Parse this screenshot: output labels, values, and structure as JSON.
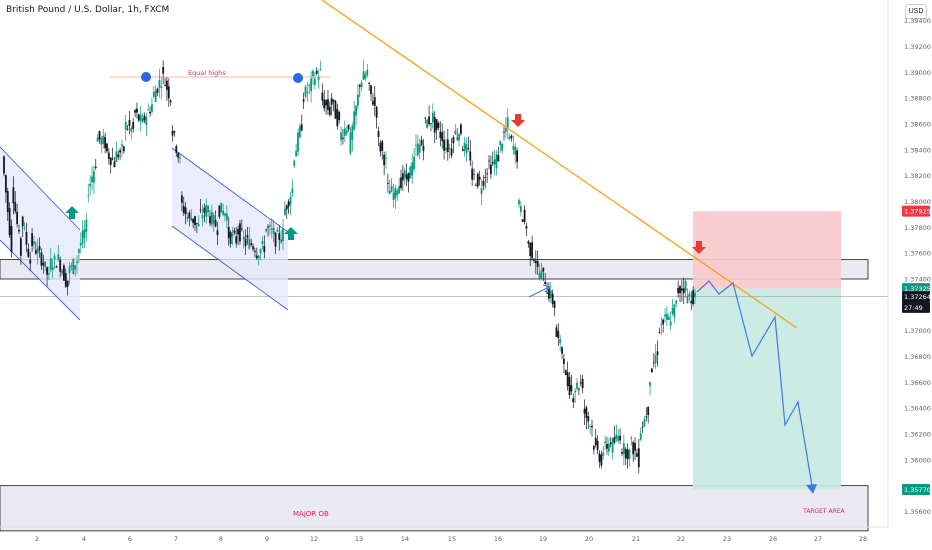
{
  "header": {
    "title": "British Pound / U.S. Dollar, 1h, FXCM",
    "currency": "USD"
  },
  "colors": {
    "up": "#089981",
    "down": "#131722",
    "trendline": "#f5a623",
    "zone_fill": "#e8e8ee",
    "channel": "#3b5bdb",
    "channel_fill": "#e3e9fb",
    "stop_fill": "#f8c9cc",
    "target_fill": "#c6e9e1",
    "arrow_red": "#e53935",
    "arrow_green": "#089981",
    "dot": "#2d66e6",
    "label_pink": "#e91e63",
    "path_blue": "#3d7be0"
  },
  "chart_data": {
    "type": "candlestick",
    "symbol": "British Pound / U.S. Dollar",
    "timeframe": "1h",
    "source": "FXCM",
    "price_ticks": [
      "1.39400",
      "1.39200",
      "1.39000",
      "1.38800",
      "1.38600",
      "1.38400",
      "1.38200",
      "1.38000",
      "1.37800",
      "1.37600",
      "1.37400",
      "1.37000",
      "1.36800",
      "1.36600",
      "1.36400",
      "1.36200",
      "1.36000",
      "1.35600"
    ],
    "date_ticks": [
      "2",
      "4",
      "6",
      "7",
      "8",
      "9",
      "12",
      "13",
      "14",
      "15",
      "16",
      "19",
      "20",
      "21",
      "22",
      "23",
      "26",
      "27",
      "28"
    ],
    "ylim": [
      1.355,
      1.395
    ],
    "price_labels": [
      {
        "value": "1.37925",
        "price": 1.37925,
        "color": "#f23645"
      },
      {
        "value": "1.37325",
        "price": 1.37325,
        "color": "#089981"
      },
      {
        "value": "1.37264",
        "price": 1.37264,
        "color": "#131722"
      },
      {
        "value": "27:49",
        "price": 1.3718,
        "color": "#131722"
      },
      {
        "value": "1.35770",
        "price": 1.3577,
        "color": "#089981"
      }
    ],
    "annotations": {
      "equal_highs": "Equal highs",
      "major_ob": "MAJOR OB",
      "target_area": "TARGET AREA"
    },
    "price_path": [
      [
        1.3835,
        1.3765
      ],
      [
        1.3815,
        1.376
      ],
      [
        1.379,
        1.3753
      ],
      [
        1.377,
        1.3758
      ],
      [
        1.376,
        1.374
      ],
      [
        1.3752,
        1.3755
      ],
      [
        1.3755,
        1.3735
      ],
      [
        1.3745,
        1.3755
      ],
      [
        1.376,
        1.378
      ],
      [
        1.3805,
        1.383
      ],
      [
        1.385,
        1.3845
      ],
      [
        1.384,
        1.383
      ],
      [
        1.3835,
        1.384
      ],
      [
        1.386,
        1.3855
      ],
      [
        1.387,
        1.386
      ],
      [
        1.3862,
        1.3875
      ],
      [
        1.388,
        1.3895
      ],
      [
        1.39,
        1.388
      ],
      [
        1.386,
        1.383
      ],
      [
        1.38,
        1.3785
      ],
      [
        1.379,
        1.378
      ],
      [
        1.3788,
        1.3795
      ],
      [
        1.379,
        1.378
      ],
      [
        1.3795,
        1.379
      ],
      [
        1.3775,
        1.377
      ],
      [
        1.378,
        1.3768
      ],
      [
        1.377,
        1.3765
      ],
      [
        1.376,
        1.3765
      ],
      [
        1.378,
        1.3775
      ],
      [
        1.377,
        1.3775
      ],
      [
        1.379,
        1.381
      ],
      [
        1.383,
        1.386
      ],
      [
        1.388,
        1.389
      ],
      [
        1.3895,
        1.39
      ],
      [
        1.388,
        1.387
      ],
      [
        1.388,
        1.386
      ],
      [
        1.385,
        1.386
      ],
      [
        1.384,
        1.388
      ],
      [
        1.389,
        1.39
      ],
      [
        1.389,
        1.387
      ],
      [
        1.385,
        1.383
      ],
      [
        1.381,
        1.3805
      ],
      [
        1.381,
        1.382
      ],
      [
        1.3815,
        1.383
      ],
      [
        1.384,
        1.3845
      ],
      [
        1.386,
        1.3865
      ],
      [
        1.386,
        1.385
      ],
      [
        1.3845,
        1.384
      ],
      [
        1.385,
        1.3855
      ],
      [
        1.3845,
        1.3835
      ],
      [
        1.382,
        1.3815
      ],
      [
        1.381,
        1.383
      ],
      [
        1.3825,
        1.3835
      ],
      [
        1.384,
        1.386
      ],
      [
        1.3852,
        1.3835
      ],
      [
        1.38,
        1.378
      ],
      [
        1.3768,
        1.3755
      ],
      [
        1.3748,
        1.374
      ],
      [
        1.3735,
        1.372
      ],
      [
        1.37,
        1.368
      ],
      [
        1.3665,
        1.365
      ],
      [
        1.3655,
        1.366
      ],
      [
        1.364,
        1.3625
      ],
      [
        1.3615,
        1.36
      ],
      [
        1.3605,
        1.3615
      ],
      [
        1.361,
        1.362
      ],
      [
        1.361,
        1.3605
      ],
      [
        1.3615,
        1.36
      ],
      [
        1.362,
        1.364
      ],
      [
        1.366,
        1.3685
      ],
      [
        1.37,
        1.371
      ],
      [
        1.3705,
        1.372
      ],
      [
        1.373,
        1.3735
      ],
      [
        1.3727,
        1.3726
      ]
    ],
    "x_start": 0.0,
    "x_end": 22.3,
    "zones": [
      {
        "name": "resistance-zone",
        "y1": 1.3755,
        "y2": 1.374,
        "x1": 0.0,
        "x2": 28.9
      },
      {
        "name": "major-ob-zone",
        "y1": 1.358,
        "y2": 1.3545,
        "x1": 0.0,
        "x2": 28.9
      },
      {
        "name": "stop-zone",
        "y1": 1.37925,
        "y2": 1.37325,
        "x1": 22.3,
        "x2": 27.5
      },
      {
        "name": "target-zone",
        "y1": 1.37325,
        "y2": 1.3577,
        "x1": 22.3,
        "x2": 27.5
      }
    ],
    "trendline": [
      [
        10.8,
        1.397
      ],
      [
        26.5,
        1.3695
      ]
    ],
    "projection": [
      [
        22.3,
        1.37325
      ],
      [
        22.7,
        1.374
      ],
      [
        23.1,
        1.3725
      ],
      [
        23.5,
        1.3738
      ],
      [
        24.4,
        1.3685
      ],
      [
        25.0,
        1.3705
      ],
      [
        25.7,
        1.3635
      ],
      [
        26.3,
        1.365
      ],
      [
        26.8,
        1.3579
      ]
    ]
  }
}
